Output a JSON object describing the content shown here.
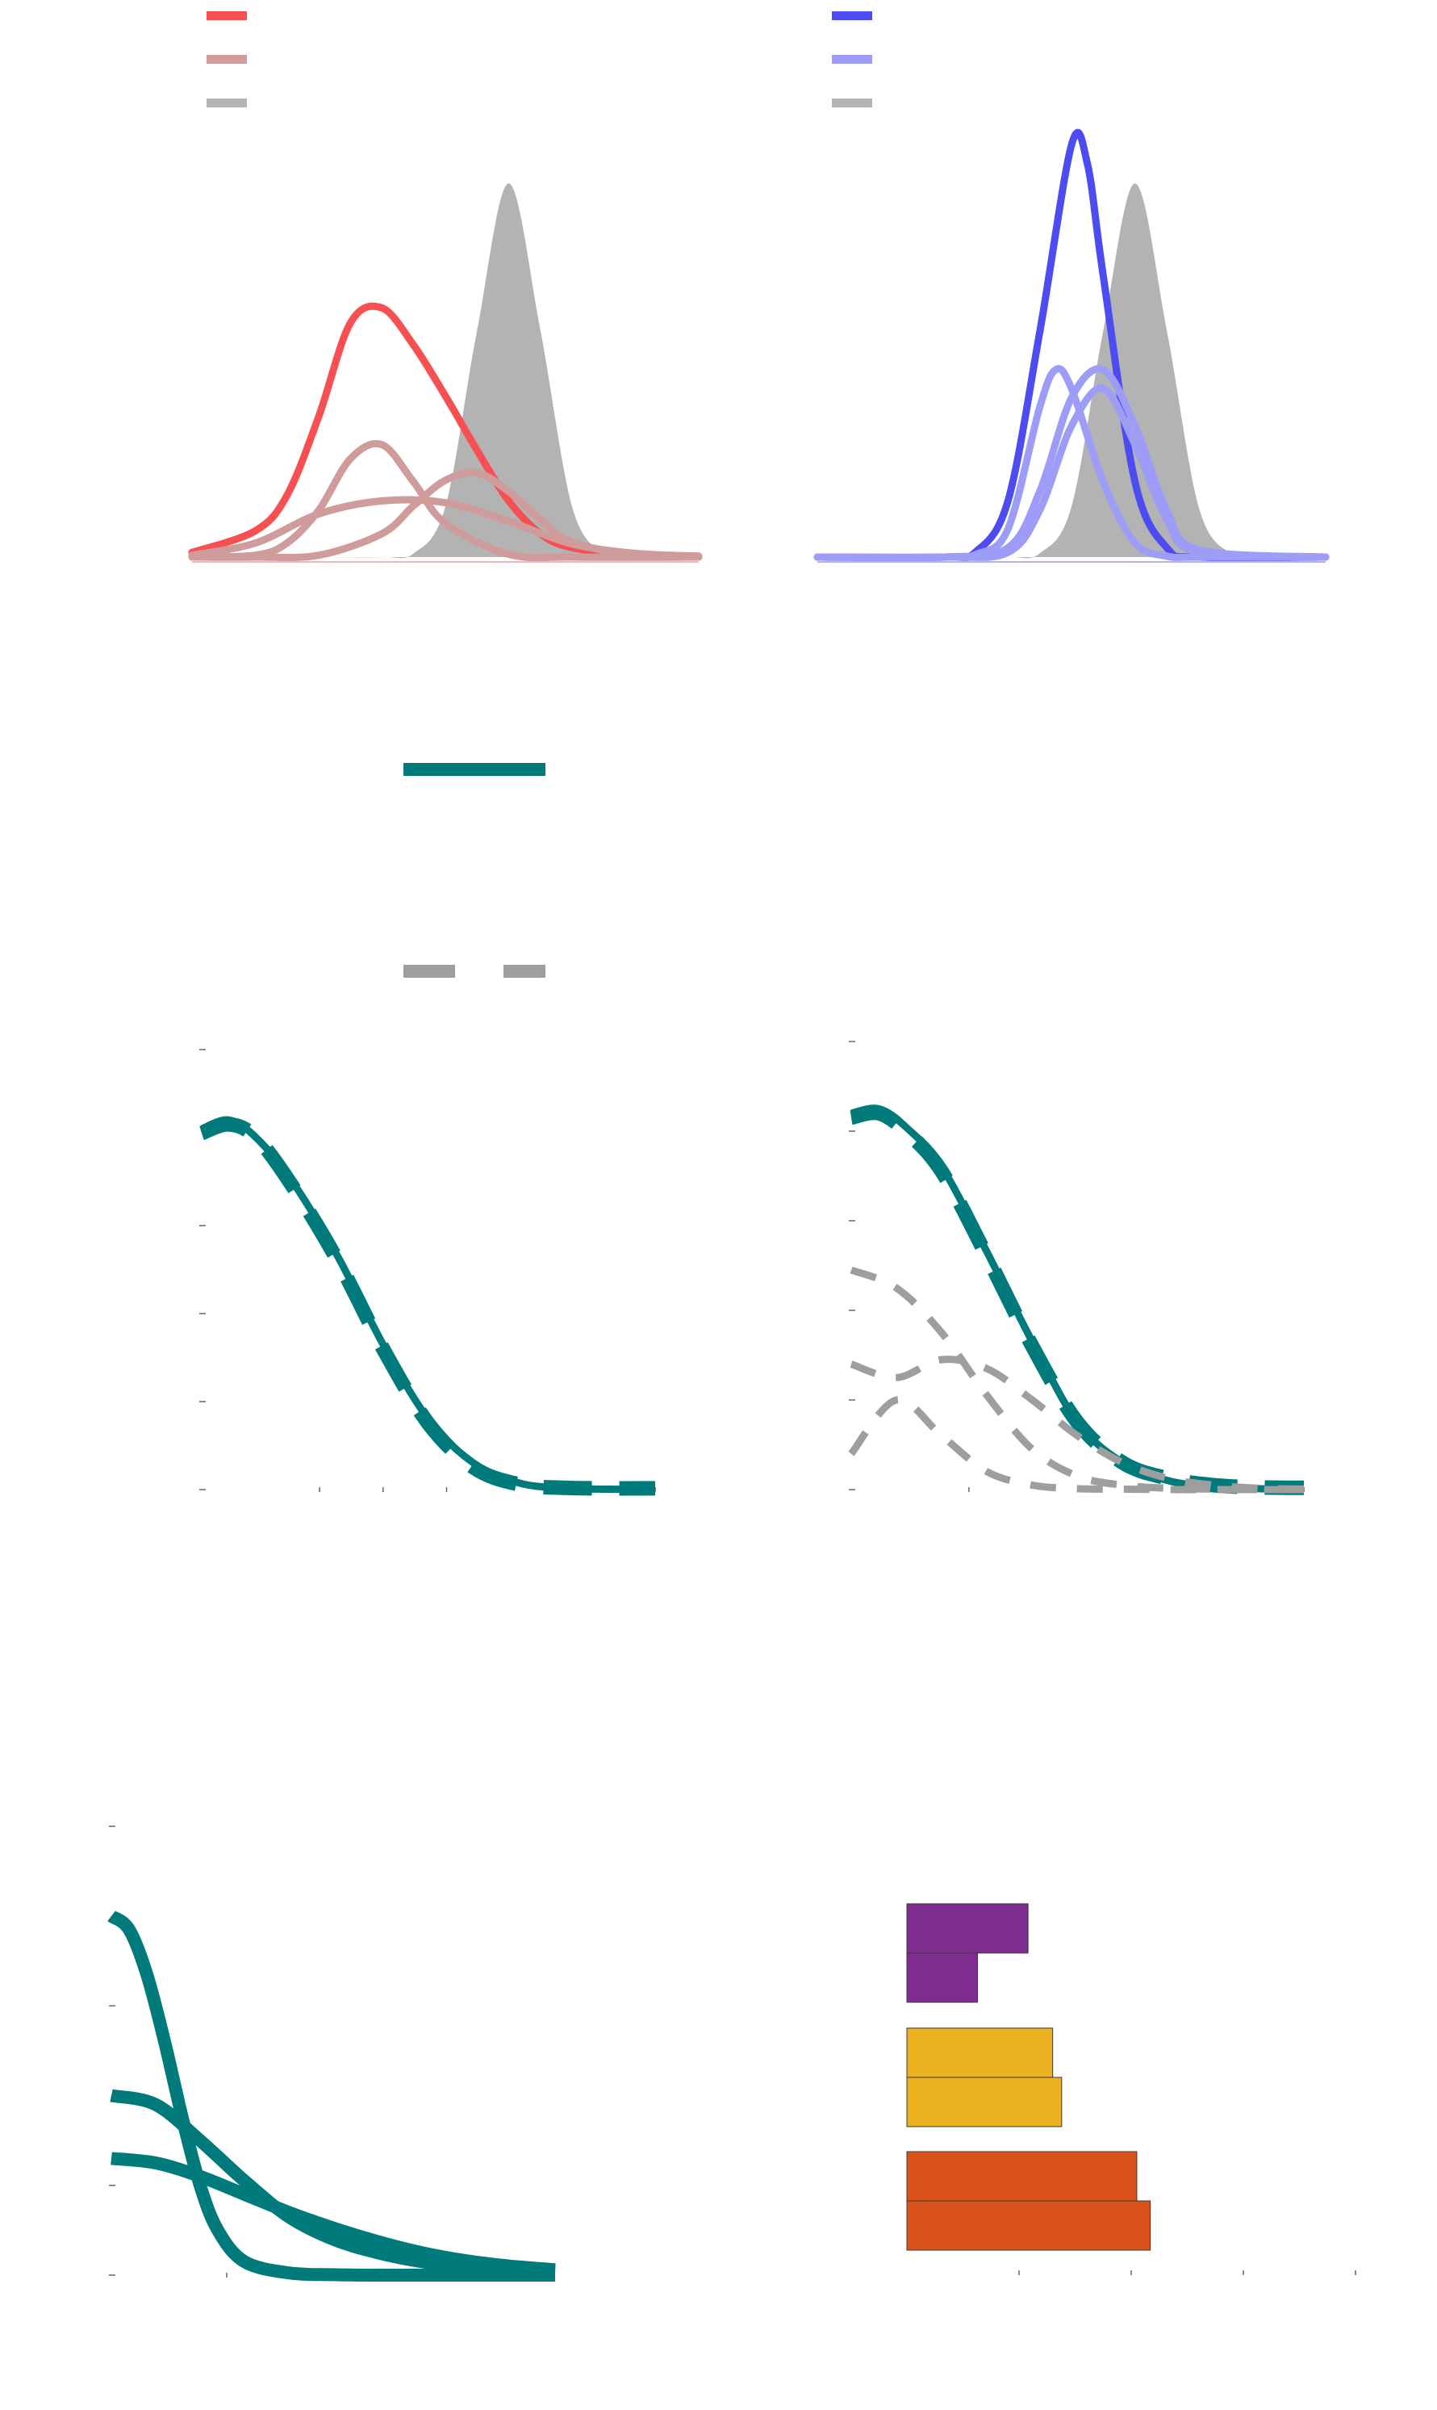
{
  "colors": {
    "red": "#f75052",
    "red_light": "#cf9b9b",
    "gray_fill": "#b3b3b3",
    "blue": "#4c4cf0",
    "blue_light": "#9d9df7",
    "teal": "#007a7a",
    "gray_dash": "#9e9e9e",
    "purple": "#7e2c8e",
    "yellow": "#ebb120",
    "orange": "#d95219"
  },
  "chart_data": [
    {
      "type": "area",
      "panel": "top-left",
      "legend": {
        "placement": "top-left",
        "colors": [
          "red",
          "red_light",
          "gray_fill"
        ]
      },
      "xlim": [
        -4,
        4
      ],
      "ylim": [
        0,
        0.5
      ],
      "grid": false,
      "series": [
        {
          "color": "gray_fill",
          "kind": "filled",
          "x": [
            -4,
            -3,
            -2,
            -1,
            -0.5,
            0,
            0.5,
            1,
            1.5,
            2,
            2.5,
            3,
            4
          ],
          "y": [
            0,
            0,
            0,
            0,
            0.004,
            0.054,
            0.242,
            0.399,
            0.242,
            0.054,
            0.004,
            0,
            0
          ]
        },
        {
          "color": "red",
          "kind": "line",
          "x": [
            -4,
            -3,
            -2.5,
            -2,
            -1.5,
            -1,
            -0.5,
            0,
            0.5,
            1,
            1.5,
            2,
            3,
            4
          ],
          "y": [
            0.005,
            0.028,
            0.066,
            0.15,
            0.25,
            0.266,
            0.226,
            0.172,
            0.114,
            0.06,
            0.025,
            0.01,
            0.002,
            0
          ]
        },
        {
          "color": "red_light",
          "kind": "line",
          "x": [
            -4,
            -3,
            -2.5,
            -2,
            -1.5,
            -1,
            -0.5,
            0,
            1,
            2,
            4
          ],
          "y": [
            0,
            0.002,
            0.015,
            0.05,
            0.105,
            0.12,
            0.08,
            0.036,
            0.003,
            0,
            0
          ]
        },
        {
          "color": "red_light",
          "kind": "line",
          "x": [
            -4,
            -3,
            -2,
            -1,
            -0.5,
            0,
            0.5,
            1,
            1.5,
            2,
            3,
            4
          ],
          "y": [
            0,
            0,
            0.002,
            0.025,
            0.055,
            0.082,
            0.09,
            0.07,
            0.04,
            0.016,
            0.002,
            0
          ]
        },
        {
          "color": "red_light",
          "kind": "line",
          "x": [
            -4,
            -3,
            -2,
            -1,
            0,
            1,
            2,
            3,
            4
          ],
          "y": [
            0.002,
            0.015,
            0.046,
            0.06,
            0.058,
            0.038,
            0.014,
            0.004,
            0.001
          ]
        }
      ]
    },
    {
      "type": "area",
      "panel": "top-right",
      "legend": {
        "placement": "top-left",
        "colors": [
          "blue",
          "blue_light",
          "gray_fill"
        ]
      },
      "xlim": [
        -4,
        4
      ],
      "ylim": [
        0,
        0.5
      ],
      "grid": false,
      "series": [
        {
          "color": "gray_fill",
          "kind": "filled",
          "x": [
            -4,
            -3,
            -2,
            -1,
            -0.5,
            0,
            0.5,
            1,
            1.5,
            2,
            2.5,
            3,
            4
          ],
          "y": [
            0,
            0,
            0,
            0,
            0.004,
            0.054,
            0.242,
            0.399,
            0.242,
            0.054,
            0.004,
            0,
            0
          ]
        },
        {
          "color": "blue",
          "kind": "line",
          "x": [
            -4,
            -2,
            -1.5,
            -1,
            -0.5,
            0,
            0.25,
            0.5,
            1,
            1.5,
            2,
            4
          ],
          "y": [
            0,
            0,
            0.006,
            0.06,
            0.24,
            0.44,
            0.42,
            0.3,
            0.08,
            0.01,
            0,
            0
          ]
        },
        {
          "color": "blue_light",
          "kind": "line",
          "x": [
            -4,
            -2,
            -1.5,
            -1,
            -0.5,
            -0.25,
            0,
            0.5,
            1,
            1.5,
            2,
            4
          ],
          "y": [
            0,
            0,
            0.003,
            0.03,
            0.16,
            0.2,
            0.18,
            0.08,
            0.015,
            0.001,
            0,
            0
          ]
        },
        {
          "color": "blue_light",
          "kind": "line",
          "x": [
            -4,
            -2,
            -1,
            -0.5,
            0,
            0.5,
            1,
            1.5,
            2,
            4
          ],
          "y": [
            0,
            0,
            0.01,
            0.07,
            0.17,
            0.2,
            0.14,
            0.05,
            0.008,
            0
          ]
        },
        {
          "color": "blue_light",
          "kind": "line",
          "x": [
            -4,
            -2,
            -1,
            -0.5,
            0,
            0.5,
            1,
            1.5,
            2,
            4
          ],
          "y": [
            0,
            0,
            0.005,
            0.05,
            0.14,
            0.18,
            0.12,
            0.04,
            0.005,
            0
          ]
        }
      ]
    },
    {
      "type": "line",
      "panel": "legend",
      "legend": {
        "placement": "center",
        "entries": [
          {
            "color": "teal",
            "style": "solid"
          },
          {
            "color": "gray_dash",
            "style": "dashed"
          }
        ]
      }
    },
    {
      "type": "line",
      "panel": "middle-left",
      "xlim": [
        0,
        5
      ],
      "ylim": [
        0,
        1
      ],
      "grid": false,
      "x_ticks": [
        1.3,
        2.0,
        2.7,
        5.0
      ],
      "y_ticks": [
        0,
        0.2,
        0.4,
        0.6,
        1.0
      ],
      "series": [
        {
          "color": "teal",
          "style": "solid",
          "x": [
            0,
            0.3,
            0.6,
            1,
            1.5,
            2,
            2.5,
            3,
            3.5,
            4,
            4.5,
            5
          ],
          "y": [
            0.82,
            0.84,
            0.8,
            0.7,
            0.53,
            0.33,
            0.16,
            0.06,
            0.015,
            0.003,
            0.001,
            0
          ]
        },
        {
          "color": "teal",
          "style": "dashed",
          "x": [
            0,
            0.3,
            0.6,
            1,
            1.5,
            2,
            2.5,
            3,
            3.5,
            4,
            4.5,
            5
          ],
          "y": [
            0.81,
            0.83,
            0.8,
            0.69,
            0.52,
            0.32,
            0.15,
            0.05,
            0.012,
            0.004,
            0.003,
            0.003
          ]
        }
      ]
    },
    {
      "type": "line",
      "panel": "middle-right",
      "xlim": [
        0,
        5
      ],
      "ylim": [
        0,
        1
      ],
      "grid": false,
      "x_ticks": [
        1.3,
        5.0
      ],
      "y_ticks": [
        0,
        0.2,
        0.4,
        0.6,
        0.8,
        1.0
      ],
      "series": [
        {
          "color": "teal",
          "style": "solid",
          "x": [
            0,
            0.3,
            0.6,
            1,
            1.5,
            2,
            2.5,
            3,
            3.5,
            4,
            4.5,
            5
          ],
          "y": [
            0.84,
            0.85,
            0.81,
            0.72,
            0.53,
            0.33,
            0.15,
            0.06,
            0.02,
            0.006,
            0.002,
            0
          ]
        },
        {
          "color": "teal",
          "style": "dashed",
          "x": [
            0,
            0.3,
            0.6,
            1,
            1.5,
            2,
            2.5,
            3,
            3.5,
            4,
            4.5,
            5
          ],
          "y": [
            0.83,
            0.84,
            0.8,
            0.71,
            0.52,
            0.32,
            0.15,
            0.06,
            0.025,
            0.01,
            0.005,
            0.004
          ]
        },
        {
          "color": "gray_dash",
          "style": "dashed",
          "x": [
            0,
            0.5,
            1,
            1.5,
            2,
            2.5,
            3,
            3.5,
            4,
            4.5,
            5
          ],
          "y": [
            0.49,
            0.45,
            0.35,
            0.21,
            0.09,
            0.03,
            0.01,
            0.003,
            0.001,
            0,
            0
          ]
        },
        {
          "color": "gray_dash",
          "style": "dashed",
          "x": [
            0,
            0.5,
            1,
            1.5,
            2,
            2.5,
            3,
            3.5,
            4,
            4.5,
            5
          ],
          "y": [
            0.28,
            0.25,
            0.29,
            0.27,
            0.2,
            0.12,
            0.06,
            0.025,
            0.01,
            0.003,
            0.001
          ]
        },
        {
          "color": "gray_dash",
          "style": "dashed",
          "x": [
            0,
            0.5,
            1,
            1.5,
            2,
            2.5,
            3,
            3.5,
            4,
            4.5,
            5
          ],
          "y": [
            0.08,
            0.2,
            0.12,
            0.04,
            0.01,
            0.002,
            0.001,
            0,
            0,
            0,
            0
          ]
        }
      ]
    },
    {
      "type": "line",
      "panel": "bottom-left",
      "xlim": [
        0,
        5
      ],
      "ylim": [
        0,
        1
      ],
      "grid": false,
      "x_ticks": [
        1.3
      ],
      "y_ticks": [
        0,
        0.2,
        0.6,
        1.0
      ],
      "series": [
        {
          "color": "teal",
          "style": "solid",
          "x": [
            0,
            0.2,
            0.4,
            0.6,
            0.8,
            1,
            1.2,
            1.5,
            2,
            2.5,
            3,
            4,
            5
          ],
          "y": [
            0.8,
            0.77,
            0.67,
            0.52,
            0.35,
            0.2,
            0.1,
            0.03,
            0.005,
            0.001,
            0,
            0,
            0
          ]
        },
        {
          "color": "teal",
          "style": "solid",
          "x": [
            0,
            0.5,
            1,
            1.5,
            2,
            2.5,
            3,
            3.5,
            4,
            4.5,
            5
          ],
          "y": [
            0.4,
            0.38,
            0.3,
            0.21,
            0.13,
            0.08,
            0.05,
            0.03,
            0.018,
            0.01,
            0.005
          ]
        },
        {
          "color": "teal",
          "style": "solid",
          "x": [
            0,
            0.5,
            1,
            1.5,
            2,
            2.5,
            3,
            3.5,
            4,
            4.5,
            5
          ],
          "y": [
            0.26,
            0.25,
            0.22,
            0.18,
            0.14,
            0.105,
            0.075,
            0.05,
            0.032,
            0.02,
            0.012
          ]
        }
      ]
    },
    {
      "type": "bar",
      "panel": "bottom-right",
      "orientation": "horizontal",
      "xlim": [
        0,
        4
      ],
      "x_ticks": [
        1,
        2,
        3,
        4
      ],
      "grid": false,
      "bars": [
        {
          "color": "purple",
          "value": 1.08
        },
        {
          "color": "purple",
          "value": 0.63
        },
        {
          "color": "yellow",
          "value": 1.3
        },
        {
          "color": "yellow",
          "value": 1.38
        },
        {
          "color": "orange",
          "value": 2.05
        },
        {
          "color": "orange",
          "value": 2.17
        }
      ]
    }
  ]
}
